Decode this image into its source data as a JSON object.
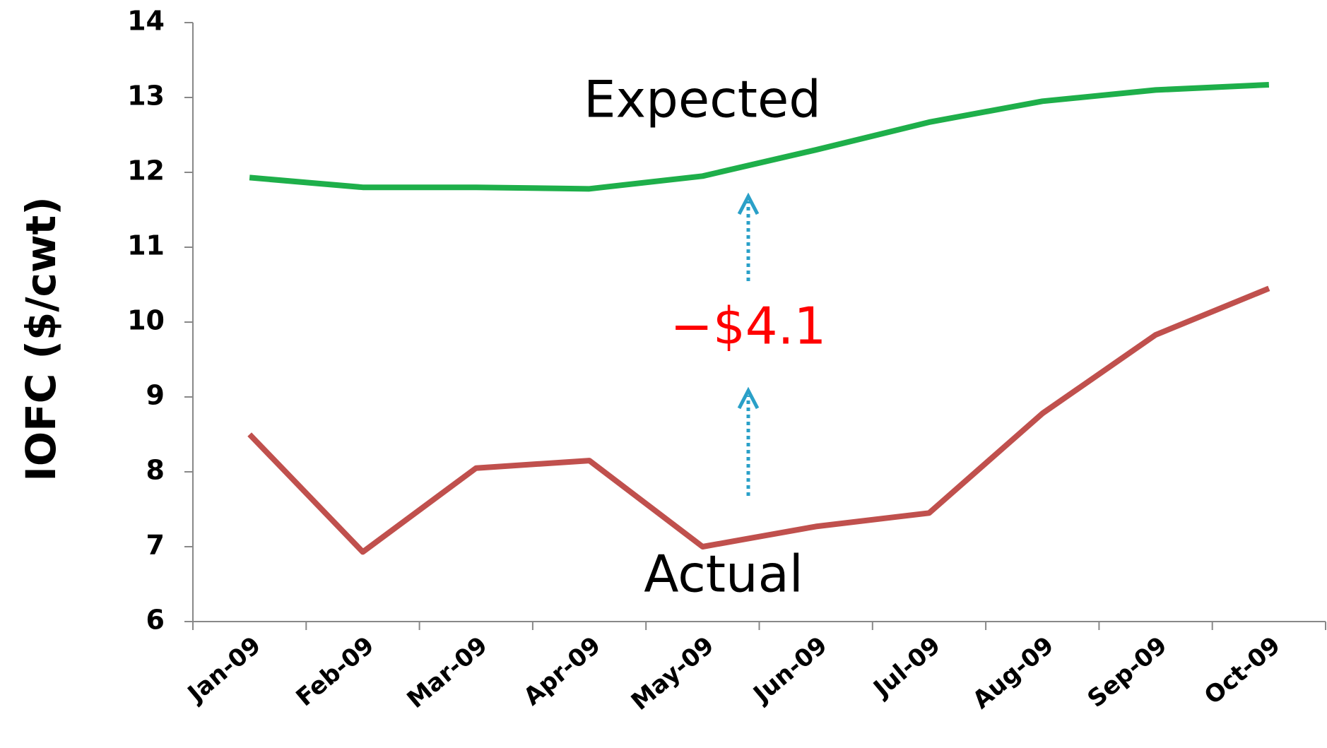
{
  "chart_data": {
    "type": "line",
    "y_label": "IOFC ($/cwt)",
    "categories": [
      "Jan-09",
      "Feb-09",
      "Mar-09",
      "Apr-09",
      "May-09",
      "Jun-09",
      "Jul-09",
      "Aug-09",
      "Sep-09",
      "Oct-09"
    ],
    "series": [
      {
        "name": "Expected",
        "color": "#1eaf4a",
        "values": [
          11.93,
          11.8,
          11.8,
          11.78,
          11.95,
          12.3,
          12.67,
          12.95,
          13.1,
          13.17
        ]
      },
      {
        "name": "Actual",
        "color": "#c0504d",
        "values": [
          8.5,
          6.93,
          8.05,
          8.15,
          7.0,
          7.27,
          7.45,
          8.78,
          9.83,
          10.45
        ]
      }
    ],
    "annotation": "−$4.1",
    "ylim": [
      6,
      14
    ],
    "yticks": [
      6,
      7,
      8,
      9,
      10,
      11,
      12,
      13,
      14
    ],
    "grid": false
  }
}
